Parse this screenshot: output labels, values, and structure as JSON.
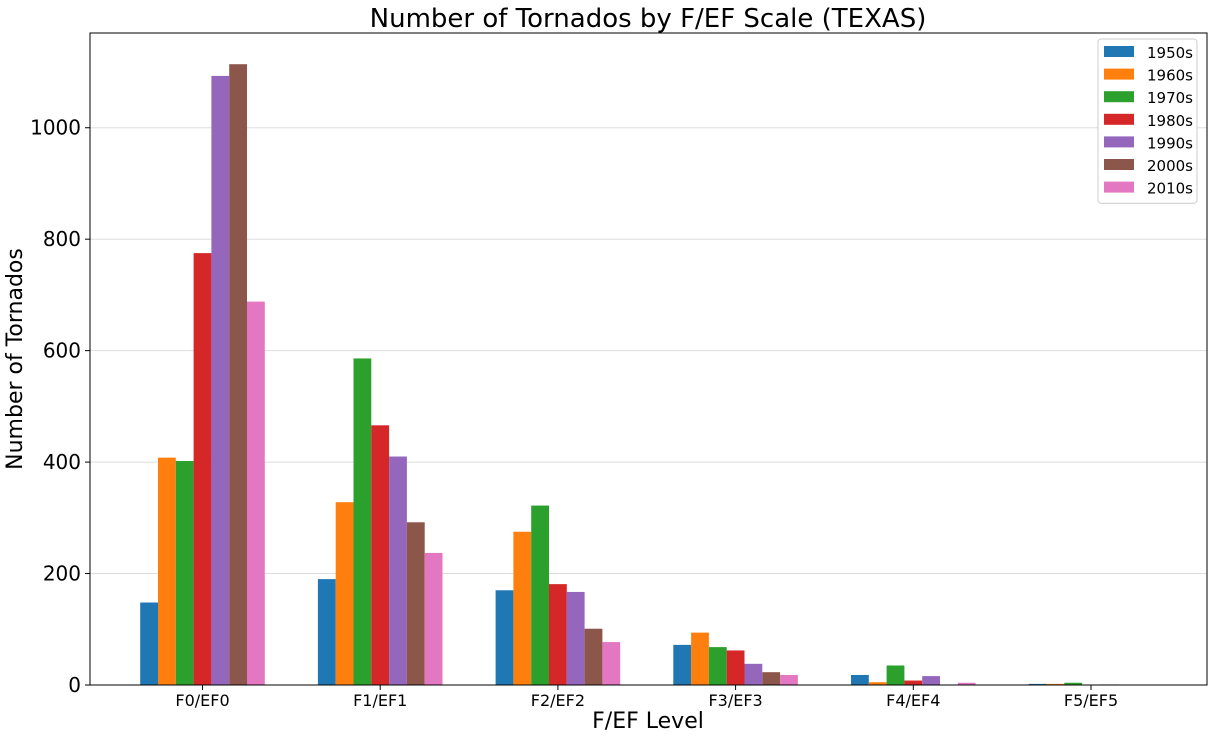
{
  "chart_data": {
    "type": "bar",
    "title": "Number of Tornados by F/EF Scale (TEXAS)",
    "xlabel": "F/EF Level",
    "ylabel": "Number of Tornados",
    "categories": [
      "F0/EF0",
      "F1/EF1",
      "F2/EF2",
      "F3/EF3",
      "F4/EF4",
      "F5/EF5"
    ],
    "ylim": [
      0,
      1170
    ],
    "yticks": [
      0,
      200,
      400,
      600,
      800,
      1000
    ],
    "grid": true,
    "legend_position": "top-right",
    "series": [
      {
        "name": "1950s",
        "color": "#1f77b4",
        "values": [
          148,
          190,
          170,
          72,
          18,
          2
        ]
      },
      {
        "name": "1960s",
        "color": "#ff7f0e",
        "values": [
          408,
          328,
          275,
          94,
          5,
          2
        ]
      },
      {
        "name": "1970s",
        "color": "#2ca02c",
        "values": [
          402,
          586,
          322,
          68,
          35,
          4
        ]
      },
      {
        "name": "1980s",
        "color": "#d62728",
        "values": [
          775,
          466,
          181,
          62,
          8,
          0
        ]
      },
      {
        "name": "1990s",
        "color": "#9467bd",
        "values": [
          1093,
          410,
          167,
          38,
          16,
          1
        ]
      },
      {
        "name": "2000s",
        "color": "#8c564b",
        "values": [
          1114,
          292,
          101,
          23,
          0,
          0
        ]
      },
      {
        "name": "2010s",
        "color": "#e377c2",
        "values": [
          688,
          237,
          77,
          18,
          4,
          0
        ]
      }
    ]
  }
}
